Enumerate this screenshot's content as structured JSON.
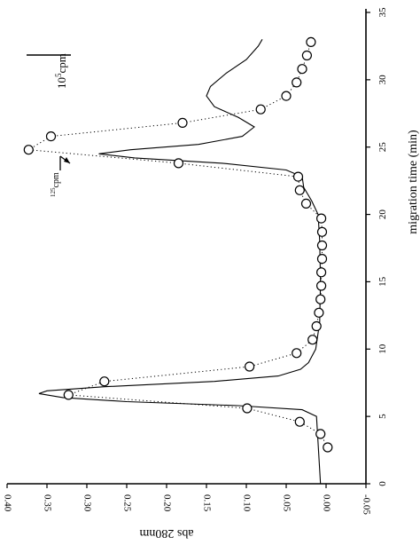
{
  "chart_data": {
    "type": "scatter",
    "title": "",
    "xlabel": "migration time (min)",
    "ylabel": "abs 280nm",
    "xlim": [
      0,
      35
    ],
    "ylim": [
      -0.05,
      0.4
    ],
    "x_ticks": [
      0,
      5,
      10,
      15,
      20,
      25,
      30,
      35
    ],
    "x_tick_labels": [
      "0",
      "5",
      "10",
      "15",
      "20",
      "25",
      "30",
      "35"
    ],
    "y_ticks": [
      -0.05,
      0.0,
      0.05,
      0.1,
      0.15,
      0.2,
      0.25,
      0.3,
      0.35,
      0.4
    ],
    "y_tick_labels": [
      "-0.05",
      "0.00",
      "0.05",
      "0.10",
      "0.15",
      "0.20",
      "0.25",
      "0.30",
      "0.35",
      "0.40"
    ],
    "orientation": "rotated 90 degrees clockwise (x axis runs vertically on the right, y axis horizontal at the bottom)",
    "grid": false,
    "series": [
      {
        "style": "solid line",
        "x": [
          0,
          5.0,
          5.5,
          5.8,
          6.1,
          6.4,
          6.7,
          6.9,
          7.2,
          7.6,
          8.0,
          8.5,
          9.0,
          10.0,
          12.0,
          15.0,
          18.0,
          20.0,
          21.0,
          22.0,
          22.8,
          23.3,
          23.8,
          24.2,
          24.5,
          24.8,
          25.2,
          25.8,
          26.5,
          27.2,
          28.0,
          28.8,
          29.5,
          30.5,
          31.5,
          32.5,
          33.0
        ],
        "y": [
          0.007,
          0.012,
          0.03,
          0.11,
          0.25,
          0.33,
          0.36,
          0.35,
          0.28,
          0.14,
          0.06,
          0.032,
          0.022,
          0.013,
          0.008,
          0.007,
          0.008,
          0.01,
          0.018,
          0.028,
          0.03,
          0.05,
          0.13,
          0.24,
          0.285,
          0.245,
          0.16,
          0.105,
          0.09,
          0.11,
          0.14,
          0.15,
          0.145,
          0.125,
          0.1,
          0.085,
          0.08
        ]
      },
      {
        "style": "dotted line with open circles",
        "x": [
          2.7,
          3.7,
          4.6,
          5.6,
          6.6,
          7.6,
          8.7,
          9.7,
          10.7,
          11.7,
          12.7,
          13.7,
          14.7,
          15.7,
          16.7,
          17.7,
          18.7,
          19.7,
          20.8,
          21.8,
          22.8,
          23.8,
          24.8,
          25.8,
          26.8,
          27.8,
          28.8,
          29.8,
          30.8,
          31.8,
          32.8
        ],
        "y": [
          -0.002,
          0.007,
          0.033,
          0.099,
          0.323,
          0.278,
          0.096,
          0.037,
          0.017,
          0.012,
          0.009,
          0.007,
          0.006,
          0.006,
          0.005,
          0.005,
          0.005,
          0.006,
          0.025,
          0.033,
          0.035,
          0.185,
          0.373,
          0.345,
          0.18,
          0.082,
          0.05,
          0.037,
          0.03,
          0.024,
          0.019
        ]
      }
    ],
    "annotations": {
      "scale_bar": {
        "sup": "5",
        "text": "10",
        "unit": "cpm"
      },
      "arrow_label": {
        "sup": "125",
        "text": "cpm"
      }
    }
  }
}
